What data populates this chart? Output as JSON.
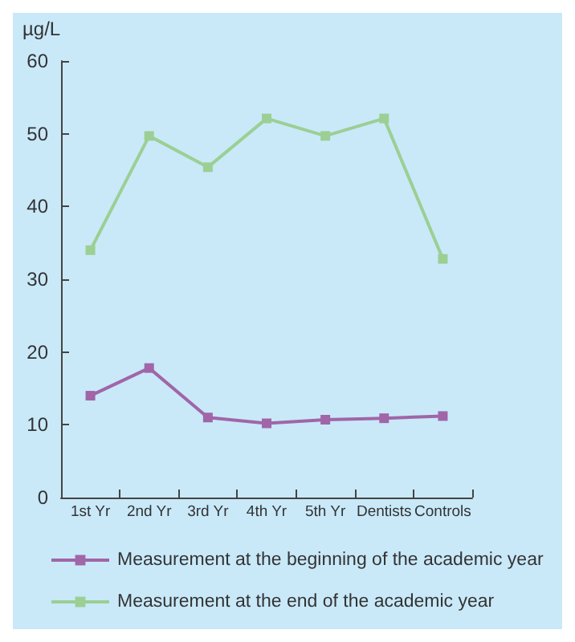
{
  "chart_data": {
    "type": "line",
    "ylabel": "µg/L",
    "categories": [
      "1st Yr",
      "2nd Yr",
      "3rd Yr",
      "4th Yr",
      "5th Yr",
      "Dentists",
      "Controls"
    ],
    "series": [
      {
        "name": "Measurement at the beginning of the academic year",
        "color": "#a066a8",
        "values": [
          14,
          17.8,
          11,
          10.2,
          10.7,
          10.9,
          11.2
        ]
      },
      {
        "name": "Measurement at the end of the academic year",
        "color": "#9ccf94",
        "values": [
          34,
          49.7,
          45.4,
          52.1,
          49.7,
          52.1,
          32.8
        ]
      }
    ],
    "ylim": [
      0,
      60
    ],
    "yticks": [
      0,
      10,
      20,
      30,
      40,
      50,
      60
    ],
    "grid": false,
    "legend": "bottom",
    "marker": "square",
    "line_style": "solid"
  }
}
